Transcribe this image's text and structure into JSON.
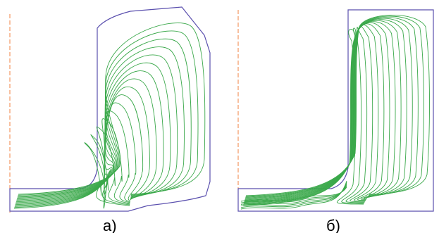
{
  "panels": [
    {
      "id": "a",
      "label": "а)"
    },
    {
      "id": "b",
      "label": "б)"
    }
  ],
  "colors": {
    "axis": "#f08040",
    "outline": "#5a4fae",
    "streamline": "#3aa84a"
  }
}
